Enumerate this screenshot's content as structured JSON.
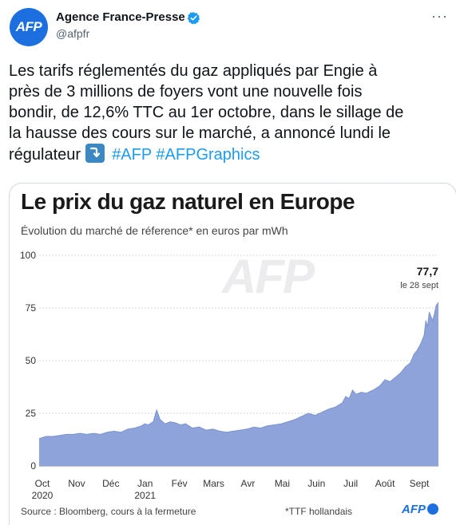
{
  "account": {
    "name": "Agence France-Presse",
    "handle": "@afpfr",
    "avatar_text": "AFP",
    "verified_icon": "verified-badge-icon",
    "more_icon": "more-options-icon",
    "brand_color": "#1d6fe0"
  },
  "tweet": {
    "lines": [
      "Les tarifs réglementés du gaz appliqués par Engie à",
      "près de 3 millions de foyers vont une nouvelle fois",
      "bondir, de 12,6% TTC au 1er octobre, dans le sillage de",
      "la hausse des cours sur le marché, a annoncé lundi le"
    ],
    "last_line_text": "régulateur",
    "hashtags": [
      "#AFP",
      "#AFPGraphics"
    ],
    "emoji_icon": "arrow-down-right-emoji-icon",
    "hashtag_color": "#1d9bf0"
  },
  "graphic": {
    "title": "Le prix du gaz naturel en Europe",
    "subtitle": "Évolution du marché de réference* en euros par mWh",
    "source": "Source : Bloomberg, cours à la fermeture",
    "note": "*TTF hollandais",
    "logo_text": "AFP",
    "watermark": "AFP",
    "callout_value": "77,7",
    "callout_date": "le 28 sept"
  },
  "chart_data": {
    "type": "area",
    "title": "Le prix du gaz naturel en Europe",
    "subtitle": "Évolution du marché de réference* en euros par mWh",
    "ylim": [
      0,
      100
    ],
    "yticks": [
      0,
      25,
      50,
      75,
      100
    ],
    "xticks": [
      {
        "label": "Oct",
        "sub": "2020",
        "month_index": 0
      },
      {
        "label": "Nov",
        "sub": "",
        "month_index": 1
      },
      {
        "label": "Déc",
        "sub": "",
        "month_index": 2
      },
      {
        "label": "Jan",
        "sub": "2021",
        "month_index": 3
      },
      {
        "label": "Fév",
        "sub": "",
        "month_index": 4
      },
      {
        "label": "Mars",
        "sub": "",
        "month_index": 5
      },
      {
        "label": "Avr",
        "sub": "",
        "month_index": 6
      },
      {
        "label": "Mai",
        "sub": "",
        "month_index": 7
      },
      {
        "label": "Juin",
        "sub": "",
        "month_index": 8
      },
      {
        "label": "Juil",
        "sub": "",
        "month_index": 9
      },
      {
        "label": "Août",
        "sub": "",
        "month_index": 10
      },
      {
        "label": "Sept",
        "sub": "",
        "month_index": 11
      }
    ],
    "series": [
      {
        "name": "",
        "color": "#8ea3da",
        "points": [
          [
            0.0,
            13
          ],
          [
            0.2,
            14
          ],
          [
            0.4,
            14
          ],
          [
            0.6,
            14.5
          ],
          [
            0.8,
            15
          ],
          [
            1.0,
            15
          ],
          [
            1.2,
            15.5
          ],
          [
            1.4,
            15
          ],
          [
            1.6,
            15.5
          ],
          [
            1.8,
            15
          ],
          [
            2.0,
            16
          ],
          [
            2.2,
            16.5
          ],
          [
            2.4,
            16
          ],
          [
            2.6,
            17.5
          ],
          [
            2.8,
            18
          ],
          [
            3.0,
            19
          ],
          [
            3.1,
            20
          ],
          [
            3.2,
            19.5
          ],
          [
            3.35,
            21
          ],
          [
            3.45,
            26.5
          ],
          [
            3.55,
            22
          ],
          [
            3.7,
            20
          ],
          [
            3.85,
            21
          ],
          [
            4.0,
            20.5
          ],
          [
            4.15,
            19.5
          ],
          [
            4.3,
            20
          ],
          [
            4.5,
            18
          ],
          [
            4.7,
            18.5
          ],
          [
            4.9,
            17
          ],
          [
            5.1,
            17.5
          ],
          [
            5.3,
            16.5
          ],
          [
            5.5,
            16
          ],
          [
            5.7,
            16.5
          ],
          [
            5.9,
            17
          ],
          [
            6.1,
            17.5
          ],
          [
            6.3,
            18.5
          ],
          [
            6.5,
            18
          ],
          [
            6.7,
            19
          ],
          [
            6.9,
            19.5
          ],
          [
            7.1,
            20
          ],
          [
            7.3,
            21
          ],
          [
            7.5,
            22
          ],
          [
            7.7,
            23.5
          ],
          [
            7.9,
            25
          ],
          [
            8.1,
            24
          ],
          [
            8.3,
            25.5
          ],
          [
            8.5,
            27
          ],
          [
            8.7,
            28
          ],
          [
            8.9,
            30
          ],
          [
            9.0,
            33
          ],
          [
            9.1,
            32
          ],
          [
            9.2,
            36
          ],
          [
            9.3,
            34
          ],
          [
            9.45,
            35
          ],
          [
            9.6,
            34.5
          ],
          [
            9.8,
            36
          ],
          [
            10.0,
            38
          ],
          [
            10.15,
            41
          ],
          [
            10.3,
            40
          ],
          [
            10.45,
            42
          ],
          [
            10.6,
            44
          ],
          [
            10.75,
            47
          ],
          [
            10.9,
            49
          ],
          [
            11.0,
            53
          ],
          [
            11.1,
            55
          ],
          [
            11.2,
            58
          ],
          [
            11.3,
            62
          ],
          [
            11.35,
            69
          ],
          [
            11.4,
            66
          ],
          [
            11.45,
            73
          ],
          [
            11.5,
            71
          ],
          [
            11.55,
            69
          ],
          [
            11.6,
            72
          ],
          [
            11.65,
            76
          ],
          [
            11.72,
            77.7
          ]
        ]
      }
    ],
    "callout": {
      "value": "77,7",
      "label": "le 28 sept"
    },
    "grid": true
  }
}
